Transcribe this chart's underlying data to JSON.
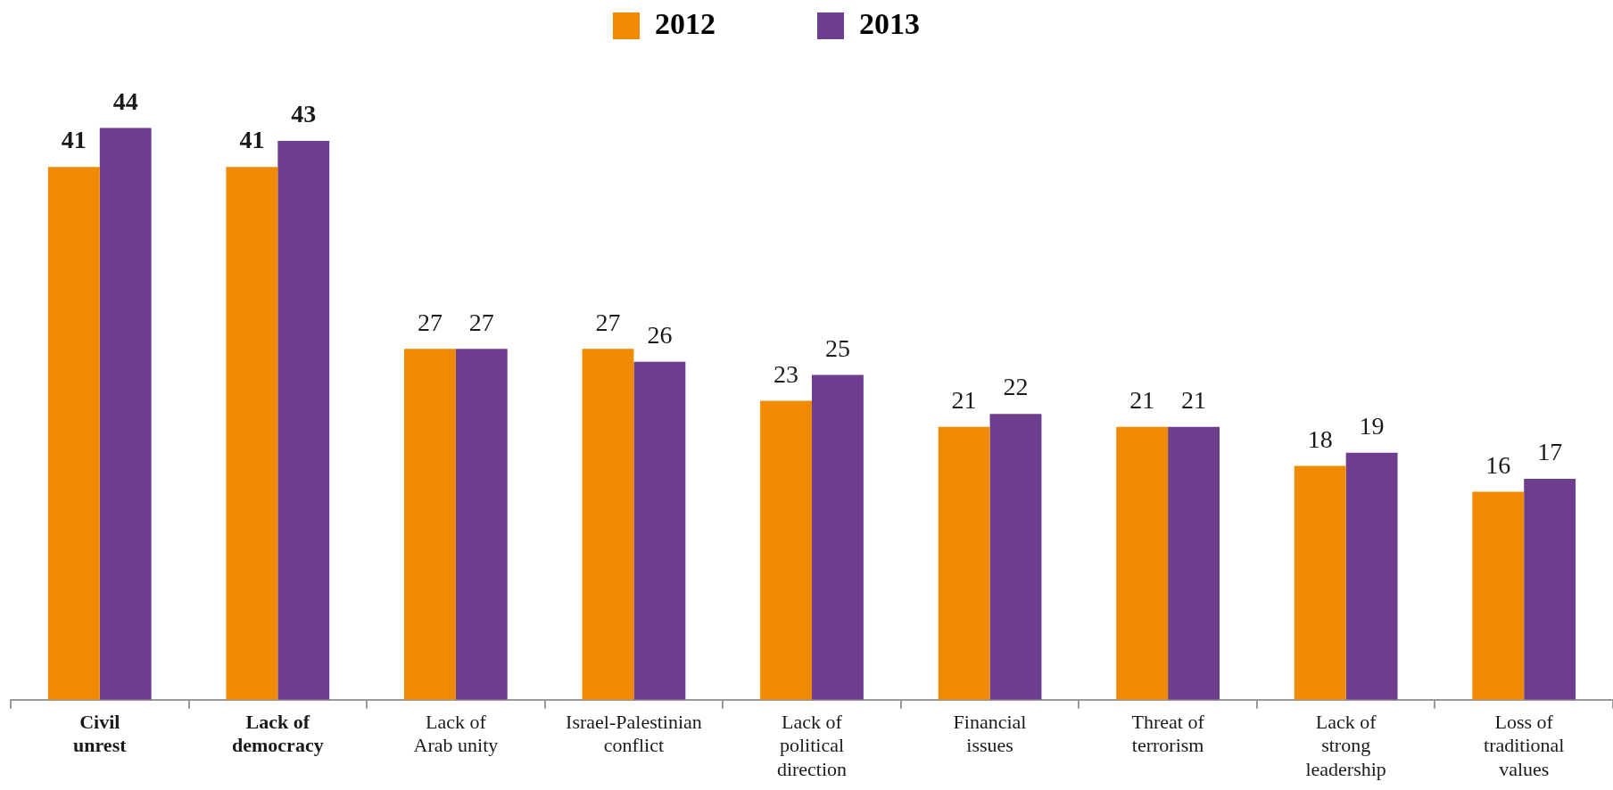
{
  "chart_data": {
    "type": "bar",
    "categories": [
      "Civil unrest",
      "Lack of democracy",
      "Lack of Arab unity",
      "Israel-Palestinian conflict",
      "Lack of political direction",
      "Financial issues",
      "Threat of terrorism",
      "Lack of strong leadership",
      "Loss of traditional values"
    ],
    "series": [
      {
        "name": "2012",
        "color": "#f08a00",
        "values": [
          41,
          41,
          27,
          27,
          23,
          21,
          21,
          18,
          16
        ]
      },
      {
        "name": "2013",
        "color": "#6d3d8e",
        "values": [
          44,
          43,
          27,
          26,
          25,
          22,
          21,
          19,
          17
        ]
      }
    ],
    "data_labels": true,
    "legend": "top",
    "grid": false,
    "tick_labels": "x"
  }
}
